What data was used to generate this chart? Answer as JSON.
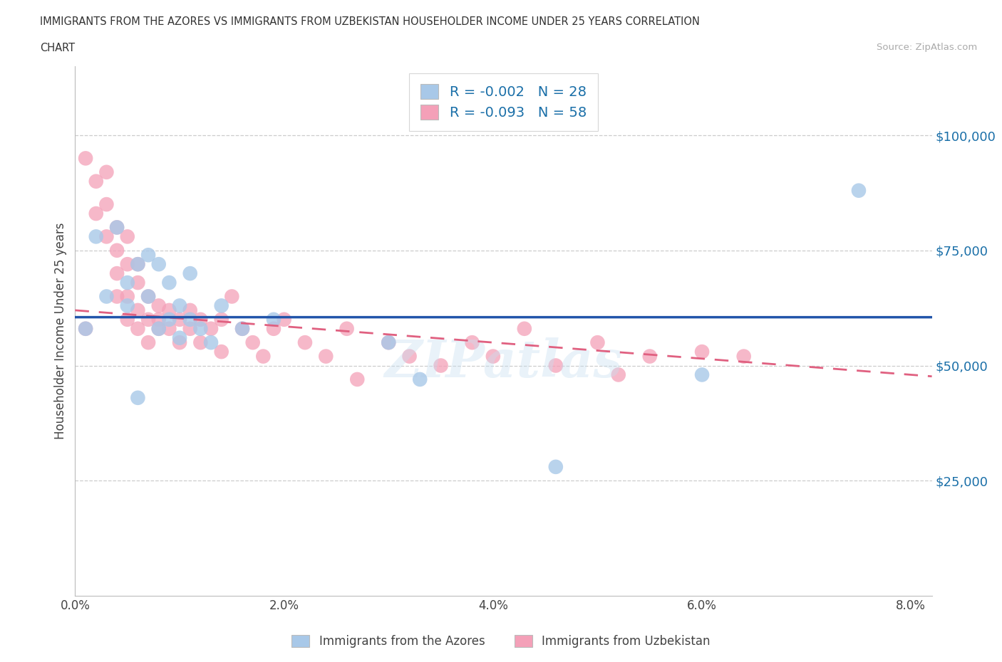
{
  "title_line1": "IMMIGRANTS FROM THE AZORES VS IMMIGRANTS FROM UZBEKISTAN HOUSEHOLDER INCOME UNDER 25 YEARS CORRELATION",
  "title_line2": "CHART",
  "source": "Source: ZipAtlas.com",
  "ylabel": "Householder Income Under 25 years",
  "xlim": [
    0.0,
    0.082
  ],
  "ylim": [
    0,
    115000
  ],
  "yticks": [
    25000,
    50000,
    75000,
    100000
  ],
  "ytick_labels": [
    "$25,000",
    "$50,000",
    "$75,000",
    "$100,000"
  ],
  "xticks": [
    0.0,
    0.02,
    0.04,
    0.06,
    0.08
  ],
  "xtick_labels": [
    "0.0%",
    "2.0%",
    "4.0%",
    "6.0%",
    "8.0%"
  ],
  "legend_labels": [
    "Immigrants from the Azores",
    "Immigrants from Uzbekistan"
  ],
  "legend_r": [
    "R = -0.002",
    "R = -0.093"
  ],
  "legend_n": [
    "N = 28",
    "N = 58"
  ],
  "blue_color": "#a8c8e8",
  "pink_color": "#f4a0b8",
  "blue_line_color": "#2255aa",
  "pink_line_color": "#e06080",
  "azores_x": [
    0.001,
    0.002,
    0.003,
    0.004,
    0.005,
    0.005,
    0.006,
    0.007,
    0.007,
    0.008,
    0.008,
    0.009,
    0.009,
    0.01,
    0.01,
    0.011,
    0.011,
    0.012,
    0.013,
    0.014,
    0.016,
    0.019,
    0.03,
    0.033,
    0.046,
    0.06,
    0.075,
    0.006
  ],
  "azores_y": [
    58000,
    78000,
    65000,
    80000,
    63000,
    68000,
    72000,
    74000,
    65000,
    58000,
    72000,
    60000,
    68000,
    56000,
    63000,
    70000,
    60000,
    58000,
    55000,
    63000,
    58000,
    60000,
    55000,
    47000,
    28000,
    48000,
    88000,
    43000
  ],
  "uzbek_x": [
    0.001,
    0.001,
    0.002,
    0.002,
    0.003,
    0.003,
    0.003,
    0.004,
    0.004,
    0.004,
    0.004,
    0.005,
    0.005,
    0.005,
    0.005,
    0.006,
    0.006,
    0.006,
    0.006,
    0.007,
    0.007,
    0.007,
    0.008,
    0.008,
    0.008,
    0.009,
    0.009,
    0.01,
    0.01,
    0.011,
    0.011,
    0.012,
    0.012,
    0.013,
    0.014,
    0.014,
    0.015,
    0.016,
    0.017,
    0.018,
    0.019,
    0.02,
    0.022,
    0.024,
    0.026,
    0.027,
    0.03,
    0.032,
    0.035,
    0.038,
    0.04,
    0.043,
    0.046,
    0.05,
    0.052,
    0.055,
    0.06,
    0.064
  ],
  "uzbek_y": [
    58000,
    95000,
    83000,
    90000,
    85000,
    78000,
    92000,
    75000,
    80000,
    70000,
    65000,
    72000,
    65000,
    60000,
    78000,
    68000,
    62000,
    58000,
    72000,
    65000,
    60000,
    55000,
    63000,
    60000,
    58000,
    62000,
    58000,
    60000,
    55000,
    62000,
    58000,
    60000,
    55000,
    58000,
    60000,
    53000,
    65000,
    58000,
    55000,
    52000,
    58000,
    60000,
    55000,
    52000,
    58000,
    47000,
    55000,
    52000,
    50000,
    55000,
    52000,
    58000,
    50000,
    55000,
    48000,
    52000,
    53000,
    52000
  ]
}
